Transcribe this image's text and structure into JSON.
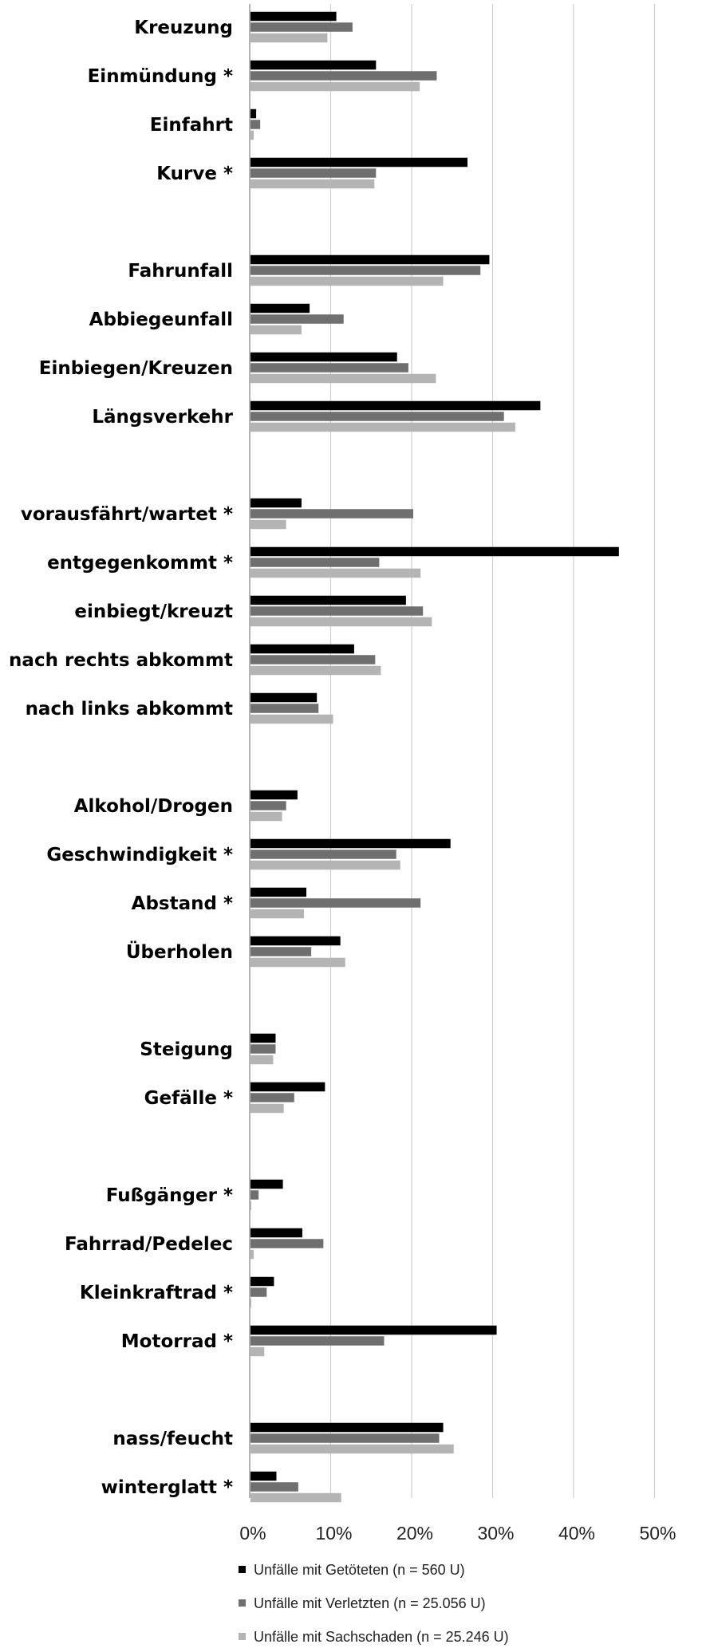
{
  "chart_data": {
    "type": "bar",
    "orientation": "horizontal",
    "categories": [
      "Kreuzung",
      "Einmündung *",
      "Einfahrt",
      "Kurve *",
      "Fahrunfall",
      "Abbiegeunfall",
      "Einbiegen/Kreuzen",
      "Längsverkehr",
      "vorausfährt/wartet *",
      "entgegenkommt *",
      "einbiegt/kreuzt",
      "nach rechts abkommt",
      "nach links abkommt",
      "Alkohol/Drogen",
      "Geschwindigkeit *",
      "Abstand *",
      "Überholen",
      "Steigung",
      "Gefälle *",
      "Fußgänger *",
      "Fahrrad/Pedelec",
      "Kleinkraftrad *",
      "Motorrad *",
      "nass/feucht",
      "winterglatt *"
    ],
    "groups": [
      4,
      4,
      5,
      4,
      2,
      4,
      2
    ],
    "series": [
      {
        "name": "Unfälle mit Getöteten (n = 560 U)",
        "color": "#000000",
        "values": [
          10.6,
          15.5,
          0.7,
          26.8,
          29.5,
          7.3,
          18.1,
          35.8,
          6.3,
          45.5,
          19.2,
          12.8,
          8.2,
          5.8,
          24.7,
          6.9,
          11.1,
          3.1,
          9.2,
          4.0,
          6.4,
          2.9,
          30.4,
          23.8,
          3.2
        ]
      },
      {
        "name": "Unfälle mit Verletzten (n = 25.056 U)",
        "color": "#6f6f6f",
        "values": [
          12.6,
          23.0,
          1.2,
          15.5,
          28.4,
          11.5,
          19.5,
          31.3,
          20.1,
          15.9,
          21.3,
          15.4,
          8.4,
          4.4,
          18.0,
          21.0,
          7.5,
          3.1,
          5.4,
          1.0,
          9.0,
          2.0,
          16.5,
          23.3,
          5.9
        ]
      },
      {
        "name": "Unfälle mit Sachschaden (n = 25.246 U)",
        "color": "#b4b4b4",
        "values": [
          9.5,
          20.9,
          0.4,
          15.3,
          23.8,
          6.3,
          22.9,
          32.7,
          4.4,
          21.0,
          22.4,
          16.1,
          10.2,
          3.9,
          18.5,
          6.6,
          11.7,
          2.8,
          4.1,
          0.1,
          0.4,
          0.1,
          1.7,
          25.1,
          11.2
        ]
      }
    ],
    "xticks": [
      "0%",
      "10%",
      "20%",
      "30%",
      "40%",
      "50%"
    ],
    "xlim": [
      0,
      50
    ],
    "grid": true,
    "legend_position": "bottom"
  }
}
